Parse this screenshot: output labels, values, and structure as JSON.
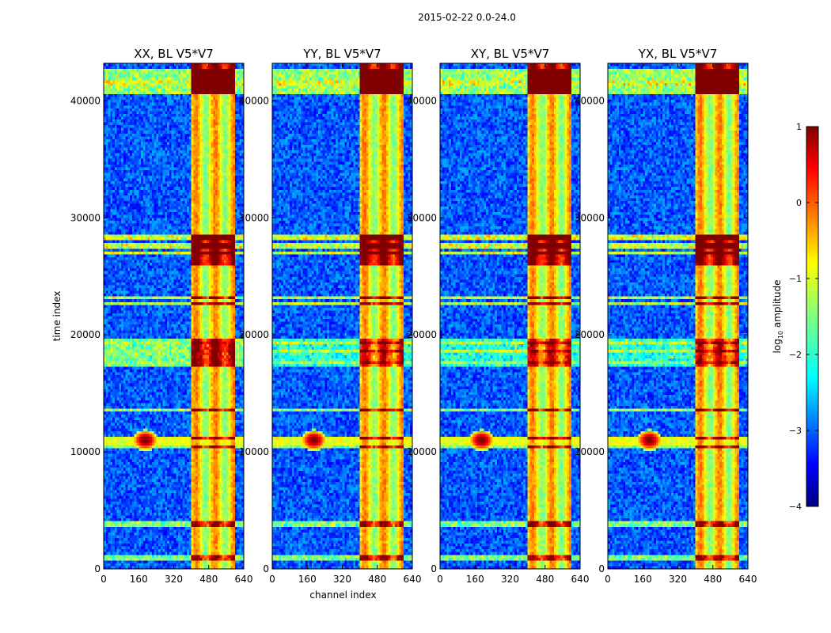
{
  "figure_title": "2015-02-22 0.0-24.0",
  "chart_data": [
    {
      "type": "heatmap",
      "title": "XX, BL V5*V7",
      "xlabel": "",
      "ylabel": "time index",
      "xlim": [
        0,
        640
      ],
      "ylim": [
        0,
        43200
      ],
      "xticks": [
        "0",
        "160",
        "320",
        "480",
        "640"
      ],
      "yticks": [
        "0",
        "10000",
        "20000",
        "30000",
        "40000"
      ],
      "variant": 0
    },
    {
      "type": "heatmap",
      "title": "YY, BL V5*V7",
      "xlabel": "channel index",
      "ylabel": "",
      "xlim": [
        0,
        640
      ],
      "ylim": [
        0,
        43200
      ],
      "xticks": [
        "0",
        "160",
        "320",
        "480",
        "640"
      ],
      "yticks": [
        "0",
        "10000",
        "20000",
        "30000",
        "40000"
      ],
      "variant": 1
    },
    {
      "type": "heatmap",
      "title": "XY, BL V5*V7",
      "xlabel": "",
      "ylabel": "",
      "xlim": [
        0,
        640
      ],
      "ylim": [
        0,
        43200
      ],
      "xticks": [
        "0",
        "160",
        "320",
        "480",
        "640"
      ],
      "yticks": [
        "0",
        "10000",
        "20000",
        "30000",
        "40000"
      ],
      "variant": 2
    },
    {
      "type": "heatmap",
      "title": "YX, BL V5*V7",
      "xlabel": "",
      "ylabel": "",
      "xlim": [
        0,
        640
      ],
      "ylim": [
        0,
        43200
      ],
      "xticks": [
        "0",
        "160",
        "320",
        "480",
        "640"
      ],
      "yticks": [
        "0",
        "10000",
        "20000",
        "30000",
        "40000"
      ],
      "variant": 3
    }
  ],
  "colorbar": {
    "label_prefix": "log",
    "label_sub": "10",
    "label_suffix": " amplitude",
    "range": [
      -4,
      1
    ],
    "ticks": [
      "1",
      "0",
      "−1",
      "−2",
      "−3",
      "−4"
    ],
    "colormap": "jet"
  },
  "features": {
    "hot_channel_range": [
      400,
      600
    ],
    "horizontal_bands_time": [
      41500,
      28300,
      27600,
      27000,
      23200,
      22700,
      19300,
      18600,
      17700,
      13500,
      11100,
      10400,
      3800,
      1000
    ],
    "rfi_burst_center": {
      "channel": 190,
      "time": 11000
    }
  }
}
